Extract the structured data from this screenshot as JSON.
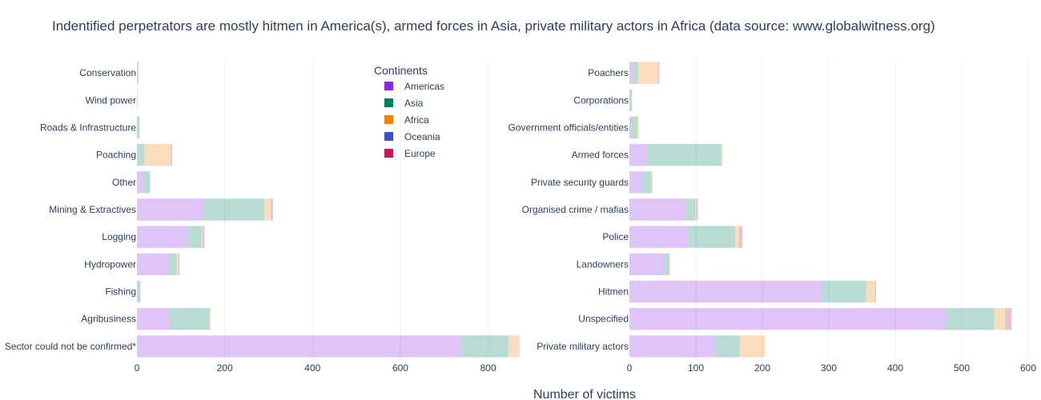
{
  "title": "Indentified perpetrators are mostly hitmen in America(s), armed forces in Asia, private military actors in Africa (data source: www.globalwitness.org)",
  "xlabel": "Number of victims",
  "legend": {
    "title": "Continents",
    "placement": "top-right of left panel",
    "items": [
      {
        "name": "Americas",
        "color": "#8a2be2"
      },
      {
        "name": "Asia",
        "color": "#008060"
      },
      {
        "name": "Africa",
        "color": "#f0840a"
      },
      {
        "name": "Oceania",
        "color": "#3a50c8"
      },
      {
        "name": "Europe",
        "color": "#c01a5a"
      }
    ]
  },
  "chart_data": [
    {
      "type": "bar",
      "orientation": "horizontal",
      "stacked": true,
      "xlim": [
        0,
        870
      ],
      "xticks": [
        0,
        200,
        400,
        600,
        800
      ],
      "grid": true,
      "categories": [
        "Sector could not be confirmed*",
        "Agribusiness",
        "Fishing",
        "Hydropower",
        "Logging",
        "Mining & Extractives",
        "Other",
        "Poaching",
        "Roads & Infrastructure",
        "Wind power",
        "Conservation"
      ],
      "series": [
        {
          "name": "Americas",
          "values": [
            738,
            75,
            3,
            72,
            115,
            152,
            14,
            2,
            2,
            1,
            1
          ]
        },
        {
          "name": "Asia",
          "values": [
            108,
            90,
            5,
            18,
            32,
            138,
            16,
            15,
            4,
            0,
            1
          ]
        },
        {
          "name": "Africa",
          "values": [
            24,
            3,
            0,
            4,
            2,
            15,
            0,
            60,
            0,
            0,
            2
          ]
        },
        {
          "name": "Oceania",
          "values": [
            1,
            0,
            0,
            1,
            1,
            5,
            0,
            0,
            0,
            0,
            0
          ]
        },
        {
          "name": "Europe",
          "values": [
            0,
            0,
            0,
            2,
            4,
            0,
            0,
            3,
            0,
            0,
            0
          ]
        }
      ]
    },
    {
      "type": "bar",
      "orientation": "horizontal",
      "stacked": true,
      "xlim": [
        0,
        600
      ],
      "xticks": [
        0,
        100,
        200,
        300,
        400,
        500,
        600
      ],
      "grid": true,
      "categories": [
        "Private military actors",
        "Unspecified",
        "Hitmen",
        "Landowners",
        "Police",
        "Organised crime / mafias",
        "Private security guards",
        "Armed forces",
        "Government officials/entities",
        "Corporations",
        "Poachers"
      ],
      "series": [
        {
          "name": "Americas",
          "values": [
            130,
            477,
            289,
            53,
            88,
            85,
            19,
            26,
            2,
            1,
            5
          ]
        },
        {
          "name": "Asia",
          "values": [
            36,
            72,
            67,
            7,
            71,
            14,
            14,
            112,
            10,
            3,
            8
          ]
        },
        {
          "name": "Africa",
          "values": [
            38,
            16,
            13,
            1,
            6,
            2,
            2,
            2,
            2,
            0,
            30
          ]
        },
        {
          "name": "Oceania",
          "values": [
            0,
            2,
            1,
            0,
            2,
            0,
            0,
            0,
            0,
            0,
            0
          ]
        },
        {
          "name": "Europe",
          "values": [
            0,
            8,
            1,
            0,
            3,
            2,
            0,
            0,
            0,
            0,
            2
          ]
        }
      ]
    }
  ]
}
